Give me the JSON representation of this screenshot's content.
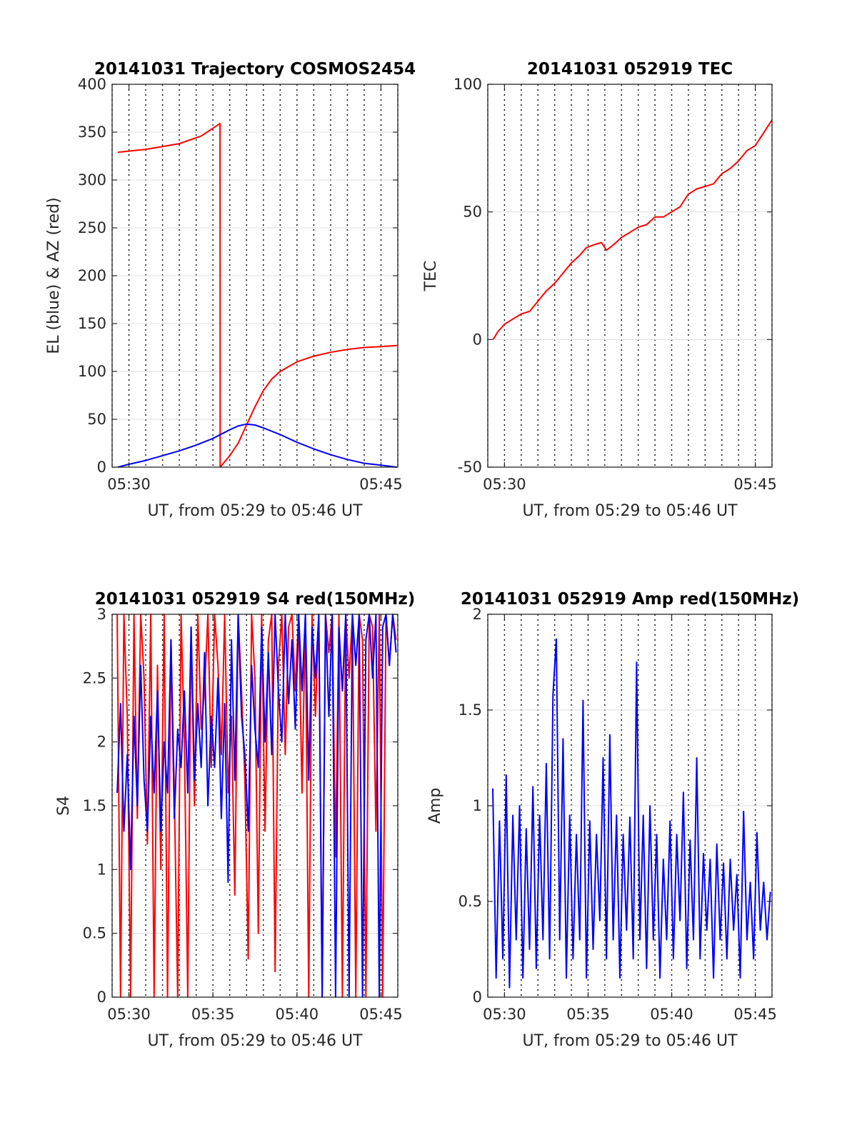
{
  "chart_data": [
    {
      "id": "trajectory",
      "type": "line",
      "title": "20141031 Trajectory COSMOS2454",
      "xlabel": "UT, from 05:29 to 05:46 UT",
      "ylabel": "EL (blue) & AZ (red)",
      "xlim": [
        0,
        17
      ],
      "ylim": [
        0,
        400
      ],
      "x_ticks": [
        {
          "v": 1,
          "label": "05:30"
        },
        {
          "v": 16,
          "label": "05:45"
        }
      ],
      "y_ticks": [
        {
          "v": 0,
          "label": "0"
        },
        {
          "v": 50,
          "label": "50"
        },
        {
          "v": 100,
          "label": "100"
        },
        {
          "v": 150,
          "label": "150"
        },
        {
          "v": 200,
          "label": "200"
        },
        {
          "v": 250,
          "label": "250"
        },
        {
          "v": 300,
          "label": "300"
        },
        {
          "v": 350,
          "label": "350"
        },
        {
          "v": 400,
          "label": "400"
        }
      ],
      "grid": true,
      "series": [
        {
          "color": "#ff0000",
          "x": [
            0.35,
            2,
            4,
            5.3,
            6.42,
            6.43,
            7,
            7.5,
            8,
            8.5,
            9,
            9.5,
            10,
            11,
            12,
            13,
            14,
            15,
            16,
            16.95
          ],
          "y": [
            329,
            332,
            338,
            346,
            359,
            0,
            12,
            25,
            44,
            63,
            80,
            92,
            100,
            110,
            116,
            120,
            123,
            125,
            126,
            127
          ]
        },
        {
          "color": "#0000ff",
          "x": [
            0.35,
            1,
            2,
            3,
            4,
            5,
            6,
            7,
            7.5,
            8,
            8.5,
            9,
            10,
            11,
            12,
            13,
            14,
            15,
            16,
            16.95
          ],
          "y": [
            0,
            3,
            7,
            12,
            17,
            23,
            30,
            39,
            43,
            45,
            44,
            41,
            34,
            26,
            19,
            13,
            8,
            4,
            2,
            0
          ]
        }
      ]
    },
    {
      "id": "tec",
      "type": "line",
      "title": "20141031 052919 TEC",
      "xlabel": "UT, from 05:29 to 05:46 UT",
      "ylabel": "TEC",
      "xlim": [
        0,
        17
      ],
      "ylim": [
        -50,
        100
      ],
      "x_ticks": [
        {
          "v": 1,
          "label": "05:30"
        },
        {
          "v": 16,
          "label": "05:45"
        }
      ],
      "y_ticks": [
        {
          "v": -50,
          "label": "-50"
        },
        {
          "v": 0,
          "label": "0"
        },
        {
          "v": 50,
          "label": "50"
        },
        {
          "v": 100,
          "label": "100"
        }
      ],
      "grid": true,
      "series": [
        {
          "color": "#ff0000",
          "x": [
            0.32,
            0.6,
            1,
            1.5,
            2,
            2.5,
            3,
            3.5,
            4,
            4.5,
            5,
            5.5,
            5.9,
            6.3,
            6.8,
            7.1,
            7.5,
            8,
            8.5,
            9,
            9.5,
            10,
            10.5,
            11,
            11.5,
            12,
            12.5,
            13,
            13.5,
            14,
            14.5,
            15,
            15.5,
            16,
            16.5,
            17
          ],
          "y": [
            0,
            3,
            6,
            8,
            10,
            11,
            15,
            19,
            22,
            26,
            30,
            33,
            36,
            37,
            38,
            35,
            37,
            40,
            42,
            44,
            45,
            48,
            48,
            50,
            52,
            57,
            59,
            60,
            61,
            65,
            67,
            70,
            74,
            76,
            81,
            86
          ]
        }
      ]
    },
    {
      "id": "s4",
      "type": "line",
      "title": "20141031 052919 S4 red(150MHz)",
      "xlabel": "UT, from 05:29 to 05:46 UT",
      "ylabel": "S4",
      "xlim": [
        0,
        17
      ],
      "ylim": [
        0,
        3
      ],
      "x_ticks": [
        {
          "v": 1,
          "label": "05:30"
        },
        {
          "v": 6,
          "label": "05:35"
        },
        {
          "v": 11,
          "label": "05:40"
        },
        {
          "v": 16,
          "label": "05:45"
        }
      ],
      "y_ticks": [
        {
          "v": 0,
          "label": "0"
        },
        {
          "v": 0.5,
          "label": "0.5"
        },
        {
          "v": 1,
          "label": "1"
        },
        {
          "v": 1.5,
          "label": "1.5"
        },
        {
          "v": 2,
          "label": "2"
        },
        {
          "v": 2.5,
          "label": "2.5"
        },
        {
          "v": 3,
          "label": "3"
        }
      ],
      "grid": true,
      "series": [
        {
          "color": "#ff0000",
          "x": [
            0.3,
            0.5,
            0.7,
            0.9,
            1.1,
            1.3,
            1.5,
            1.7,
            1.9,
            2.1,
            2.3,
            2.5,
            2.7,
            2.9,
            3.1,
            3.3,
            3.5,
            3.7,
            3.9,
            4.1,
            4.3,
            4.5,
            4.7,
            4.9,
            5.1,
            5.3,
            5.5,
            5.7,
            5.9,
            6.1,
            6.3,
            6.5,
            6.7,
            6.9,
            7.1,
            7.3,
            7.5,
            7.7,
            7.9,
            8.1,
            8.3,
            8.5,
            8.7,
            8.9,
            9.1,
            9.3,
            9.5,
            9.7,
            9.9,
            10.1,
            10.3,
            10.5,
            10.7,
            10.9,
            11.1,
            11.3,
            11.5,
            11.7,
            11.9,
            12.1,
            12.3,
            12.5,
            12.7,
            12.9,
            13.1,
            13.3,
            13.5,
            13.7,
            13.9,
            14.1,
            14.3,
            14.5,
            14.7,
            14.9,
            15.1,
            15.3,
            15.5,
            15.7,
            15.9,
            16.1,
            16.3,
            16.5,
            16.7,
            16.9
          ],
          "y": [
            3,
            0,
            3,
            2.2,
            0,
            3,
            1.4,
            3,
            2.5,
            1.2,
            3,
            0,
            2.6,
            1,
            3,
            0,
            2.8,
            1.6,
            0,
            3,
            2,
            0,
            2.9,
            1.5,
            3,
            2.1,
            2.4,
            3,
            1.8,
            3,
            2.6,
            1.9,
            3,
            1.6,
            2.2,
            0.8,
            3,
            2.4,
            1.7,
            0.3,
            3,
            2.5,
            0.5,
            3,
            1.3,
            2.8,
            3,
            0.2,
            2.6,
            3,
            1.9,
            2.9,
            3,
            2.4,
            3,
            1.6,
            3,
            0,
            3,
            2.2,
            3,
            0,
            3,
            2.7,
            3,
            1.1,
            3,
            0,
            3,
            2.5,
            3,
            0,
            3,
            2.8,
            0,
            3,
            2.9,
            1.3,
            3,
            0,
            3,
            2.6,
            3,
            2.8
          ]
        },
        {
          "color": "#0000ff",
          "x": [
            0.3,
            0.5,
            0.7,
            0.9,
            1.1,
            1.3,
            1.5,
            1.7,
            1.9,
            2.1,
            2.3,
            2.5,
            2.7,
            2.9,
            3.1,
            3.3,
            3.5,
            3.7,
            3.9,
            4.1,
            4.3,
            4.5,
            4.7,
            4.9,
            5.1,
            5.3,
            5.5,
            5.7,
            5.9,
            6.1,
            6.3,
            6.5,
            6.7,
            6.9,
            7.1,
            7.3,
            7.5,
            7.7,
            7.9,
            8.1,
            8.3,
            8.5,
            8.7,
            8.9,
            9.1,
            9.3,
            9.5,
            9.7,
            9.9,
            10.1,
            10.3,
            10.5,
            10.7,
            10.9,
            11.1,
            11.3,
            11.5,
            11.7,
            11.9,
            12.1,
            12.3,
            12.5,
            12.7,
            12.9,
            13.1,
            13.3,
            13.5,
            13.7,
            13.9,
            14.1,
            14.3,
            14.5,
            14.7,
            14.9,
            15.1,
            15.3,
            15.5,
            15.7,
            15.9,
            16.1,
            16.3,
            16.5,
            16.7,
            16.9
          ],
          "y": [
            1.6,
            2.3,
            1.3,
            1.9,
            1.0,
            2.2,
            1.5,
            2.6,
            1.7,
            1.3,
            2.2,
            1.6,
            2.4,
            1.3,
            2.0,
            1.6,
            2.8,
            1.4,
            2.1,
            1.8,
            2.4,
            1.6,
            2.9,
            1.7,
            2.3,
            1.8,
            2.7,
            1.5,
            2.2,
            1.8,
            2.5,
            1.4,
            2.3,
            0.9,
            2.8,
            1.7,
            3,
            2.2,
            1.9,
            1.3,
            2.6,
            2.1,
            1.8,
            2.9,
            2.0,
            2.7,
            1.9,
            3,
            2.4,
            2.0,
            3,
            2.3,
            2.8,
            2.1,
            3,
            2.4,
            3,
            1.7,
            2.9,
            2.5,
            3,
            0,
            3,
            2.2,
            3,
            0,
            2.9,
            2.4,
            3,
            0,
            3,
            2.6,
            3,
            0,
            2.8,
            3,
            2.5,
            3,
            0,
            2.9,
            3,
            2.6,
            3,
            2.7
          ]
        }
      ]
    },
    {
      "id": "amp",
      "type": "line",
      "title": "20141031 052919 Amp red(150MHz)",
      "xlabel": "UT, from 05:29 to 05:46 UT",
      "ylabel": "Amp",
      "xlim": [
        0,
        17
      ],
      "ylim": [
        0,
        2
      ],
      "x_ticks": [
        {
          "v": 1,
          "label": "05:30"
        },
        {
          "v": 6,
          "label": "05:35"
        },
        {
          "v": 11,
          "label": "05:40"
        },
        {
          "v": 16,
          "label": "05:45"
        }
      ],
      "y_ticks": [
        {
          "v": 0,
          "label": "0"
        },
        {
          "v": 0.5,
          "label": "0.5"
        },
        {
          "v": 1,
          "label": "1"
        },
        {
          "v": 1.5,
          "label": "1.5"
        },
        {
          "v": 2,
          "label": "2"
        }
      ],
      "grid": true,
      "series": [
        {
          "color": "#0000ff",
          "x": [
            0.3,
            0.5,
            0.7,
            0.9,
            1.1,
            1.3,
            1.5,
            1.7,
            1.9,
            2.1,
            2.3,
            2.5,
            2.7,
            2.9,
            3.1,
            3.3,
            3.5,
            3.7,
            3.9,
            4.1,
            4.3,
            4.5,
            4.7,
            4.9,
            5.1,
            5.3,
            5.5,
            5.7,
            5.9,
            6.1,
            6.3,
            6.5,
            6.7,
            6.9,
            7.1,
            7.3,
            7.5,
            7.7,
            7.9,
            8.1,
            8.3,
            8.5,
            8.7,
            8.9,
            9.1,
            9.3,
            9.5,
            9.7,
            9.9,
            10.1,
            10.3,
            10.5,
            10.7,
            10.9,
            11.1,
            11.3,
            11.5,
            11.7,
            11.9,
            12.1,
            12.3,
            12.5,
            12.7,
            12.9,
            13.1,
            13.3,
            13.5,
            13.7,
            13.9,
            14.1,
            14.3,
            14.5,
            14.7,
            14.9,
            15.1,
            15.3,
            15.5,
            15.7,
            15.9,
            16.1,
            16.3,
            16.5,
            16.7,
            16.9
          ],
          "y": [
            1.09,
            0.1,
            0.92,
            0.2,
            1.16,
            0.05,
            0.95,
            0.3,
            1.0,
            0.1,
            0.88,
            0.25,
            1.1,
            0.15,
            0.95,
            0.3,
            1.22,
            0.2,
            1.58,
            1.87,
            0.3,
            1.35,
            0.1,
            0.95,
            0.2,
            0.85,
            0.3,
            1.55,
            0.1,
            0.92,
            0.25,
            0.85,
            0.4,
            1.25,
            0.2,
            1.37,
            0.3,
            0.95,
            0.1,
            0.85,
            0.35,
            0.94,
            0.2,
            1.75,
            0.3,
            0.95,
            0.15,
            1.0,
            0.3,
            0.85,
            0.1,
            0.72,
            0.3,
            0.92,
            0.2,
            0.85,
            0.4,
            1.07,
            0.15,
            0.82,
            0.3,
            1.25,
            0.2,
            0.75,
            0.35,
            0.72,
            0.1,
            0.8,
            0.3,
            0.7,
            0.2,
            0.72,
            0.35,
            0.64,
            0.1,
            0.97,
            0.3,
            0.6,
            0.2,
            0.86,
            0.35,
            0.6,
            0.3,
            0.55
          ]
        }
      ]
    }
  ]
}
